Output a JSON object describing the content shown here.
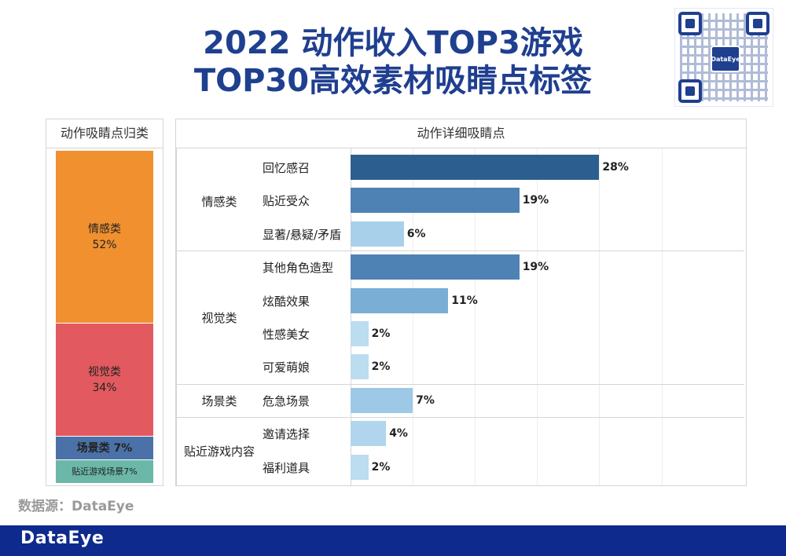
{
  "title": {
    "line1": "2022 动作收入TOP3游戏",
    "line2": "TOP30高效素材吸睛点标签"
  },
  "qr": {
    "logo_text": "DataEye"
  },
  "source": "数据源：DataEye",
  "footer": {
    "brand": "DataEye"
  },
  "colors": {
    "title": "#1f3f8f",
    "footer": "#0d2a8c"
  },
  "chart_data": [
    {
      "type": "bar",
      "orientation": "stacked-vertical",
      "title": "动作吸睛点归类",
      "segments": [
        {
          "name": "情感类",
          "value": 52,
          "label": "52%",
          "color": "#f0902f"
        },
        {
          "name": "视觉类",
          "value": 34,
          "label": "34%",
          "color": "#e25a5f"
        },
        {
          "name": "场景类",
          "value": 7,
          "label": "场景类 7%",
          "color": "#4a72a8"
        },
        {
          "name": "贴近游戏场景",
          "value": 7,
          "label": "贴近游戏场景7%",
          "color": "#6bb7a8"
        }
      ]
    },
    {
      "type": "bar",
      "orientation": "horizontal",
      "title": "动作详细吸睛点",
      "xlim": [
        0,
        40
      ],
      "groups": [
        {
          "name": "情感类",
          "items": [
            {
              "name": "回忆感召",
              "value": 28,
              "label": "28%",
              "color": "#2c5f8f"
            },
            {
              "name": "贴近受众",
              "value": 19,
              "label": "19%",
              "color": "#4e82b4"
            },
            {
              "name": "显著/悬疑/矛盾",
              "value": 6,
              "label": "6%",
              "color": "#a9d0ea"
            }
          ]
        },
        {
          "name": "视觉类",
          "items": [
            {
              "name": "其他角色造型",
              "value": 19,
              "label": "19%",
              "color": "#4e82b4"
            },
            {
              "name": "炫酷效果",
              "value": 11,
              "label": "11%",
              "color": "#7aaed4"
            },
            {
              "name": "性感美女",
              "value": 2,
              "label": "2%",
              "color": "#bcdcf0"
            },
            {
              "name": "可爱萌娘",
              "value": 2,
              "label": "2%",
              "color": "#bcdcf0"
            }
          ]
        },
        {
          "name": "场景类",
          "items": [
            {
              "name": "危急场景",
              "value": 7,
              "label": "7%",
              "color": "#9ec9e6"
            }
          ]
        },
        {
          "name": "贴近游戏内容",
          "items": [
            {
              "name": "邀请选择",
              "value": 4,
              "label": "4%",
              "color": "#b0d5ec"
            },
            {
              "name": "福利道具",
              "value": 2,
              "label": "2%",
              "color": "#bcdcf0"
            }
          ]
        }
      ]
    }
  ]
}
